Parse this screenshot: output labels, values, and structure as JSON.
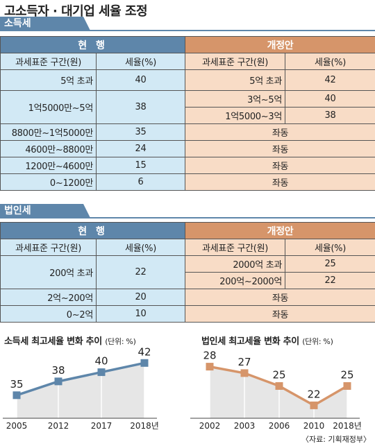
{
  "title": "고소득자 · 대기업 세율 조정",
  "colors": {
    "blue": "#5e86aa",
    "orange": "#d6956a",
    "light_blue": "#d2e9f5",
    "light_orange": "#f8dcc6"
  },
  "income": {
    "tab": "소득세",
    "head_current": "현 행",
    "head_proposed": "개정안",
    "col_bracket": "과세표준 구간(원)",
    "col_rate": "세율(%)",
    "rows": [
      {
        "cur_bracket": "5억 초과",
        "new_bracket": "5억 초과",
        "new_rate": "42"
      },
      {
        "new_bracket": "3억~5억",
        "new_rate": "40"
      },
      {
        "cur_bracket": "1억5000만~5억",
        "cur_rate": "38",
        "new_bracket": "1억5000~3억",
        "new_rate": "38"
      },
      {
        "cur_bracket": "8800만~1억5000만",
        "cur_rate": "35",
        "same": "좌동"
      },
      {
        "cur_bracket": "4600만~8800만",
        "cur_rate": "24",
        "same": "좌동"
      },
      {
        "cur_bracket": "1200만~4600만",
        "cur_rate": "15",
        "same": "좌동"
      },
      {
        "cur_bracket": "0~1200만",
        "cur_rate": "6",
        "same": "좌동"
      }
    ],
    "row0_cur_rate": "40"
  },
  "corp": {
    "tab": "법인세",
    "head_current": "현 행",
    "head_proposed": "개정안",
    "col_bracket": "과세표준 구간(원)",
    "col_rate": "세율(%)",
    "rows": [
      {
        "cur_bracket": "200억 초과",
        "cur_rate": "22",
        "new_bracket": "2000억 초과",
        "new_rate": "25"
      },
      {
        "new_bracket": "200억~2000억",
        "new_rate": "22"
      },
      {
        "cur_bracket": "2억~200억",
        "cur_rate": "20",
        "same": "좌동"
      },
      {
        "cur_bracket": "0~2억",
        "cur_rate": "10",
        "same": "좌동"
      }
    ]
  },
  "chart_data": [
    {
      "type": "line",
      "title": "소득세 최고세율 변화 추이",
      "unit": "(단위: %)",
      "x": [
        "2005",
        "2012",
        "2017",
        "2018년"
      ],
      "values": [
        35,
        38,
        40,
        42
      ],
      "color": "#5e86aa",
      "ylim": [
        30,
        44
      ]
    },
    {
      "type": "line",
      "title": "법인세 최고세율 변화 추이",
      "unit": "(단위: %)",
      "x": [
        "2002",
        "2003",
        "2006",
        "2010",
        "2018년"
      ],
      "values": [
        28,
        27,
        25,
        22,
        25
      ],
      "color": "#d6956a",
      "ylim": [
        20,
        30
      ]
    }
  ],
  "source": "〈자료: 기획재정부〉"
}
